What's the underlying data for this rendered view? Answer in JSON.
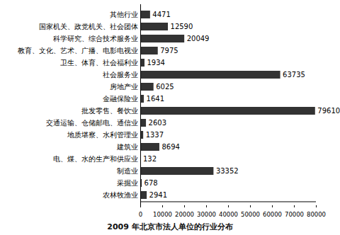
{
  "chart_data": {
    "type": "bar",
    "title": "2009 年北京市法人单位的行业分布",
    "orientation": "horizontal",
    "categories": [
      "其他行业",
      "国家机关、政党机关、社会团体",
      "科学研究、综合技术服务业",
      "教育、文化、艺术、广播、电影电视业",
      "卫生、体育、社会福利业",
      "社会服务业",
      "房地产业",
      "金融保险业",
      "批发零售、餐饮业",
      "交通运输、仓储邮电、通信业",
      "地质堪察、水利管理业",
      "建筑业",
      "电、煤、水的生产和供应业",
      "制造业",
      "采掘业",
      "农林牧渔业"
    ],
    "values": [
      4471,
      12590,
      20049,
      7975,
      1934,
      63735,
      6025,
      1641,
      79610,
      2603,
      1337,
      8694,
      132,
      33352,
      678,
      2941
    ],
    "color": "#333333",
    "xlim": [
      0,
      80000
    ],
    "xticks": [
      0,
      10000,
      20000,
      30000,
      40000,
      50000,
      60000,
      70000,
      80000
    ],
    "data_labels": true,
    "grid": false
  }
}
